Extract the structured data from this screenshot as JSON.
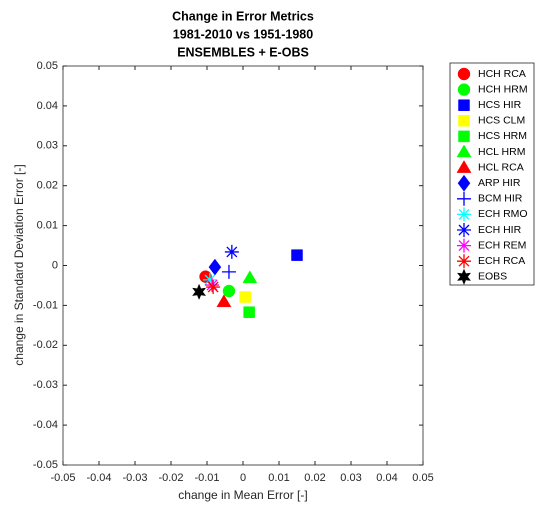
{
  "chart_data": {
    "type": "scatter",
    "title": [
      "Change in Error Metrics",
      "1981-2010 vs 1951-1980",
      "ENSEMBLES + E-OBS"
    ],
    "xlabel": "change in Mean Error [-]",
    "ylabel": "change in Standard Deviation Error [-]",
    "xlim": [
      -0.05,
      0.05
    ],
    "ylim": [
      -0.05,
      0.05
    ],
    "xticks": [
      -0.05,
      -0.04,
      -0.03,
      -0.02,
      -0.01,
      0,
      0.01,
      0.02,
      0.03,
      0.04,
      0.05
    ],
    "yticks": [
      -0.05,
      -0.04,
      -0.03,
      -0.02,
      -0.01,
      0,
      0.01,
      0.02,
      0.03,
      0.04,
      0.05
    ],
    "grid": false,
    "legend": "outside-right",
    "series": [
      {
        "name": "HCH RCA",
        "color": "#ff0000",
        "marker": "circle",
        "x": [
          -0.0104
        ],
        "values": [
          -0.0028
        ]
      },
      {
        "name": "HCH HRM",
        "color": "#00ff00",
        "marker": "circle",
        "x": [
          -0.0039
        ],
        "values": [
          -0.0064
        ]
      },
      {
        "name": "HCS HIR",
        "color": "#0000ff",
        "marker": "square",
        "x": [
          0.015
        ],
        "values": [
          0.0026
        ]
      },
      {
        "name": "HCS CLM",
        "color": "#ffff00",
        "marker": "square",
        "x": [
          0.0006
        ],
        "values": [
          -0.0079
        ]
      },
      {
        "name": "HCS HRM",
        "color": "#00ff00",
        "marker": "square",
        "x": [
          0.0017
        ],
        "values": [
          -0.0117
        ]
      },
      {
        "name": "HCL HRM",
        "color": "#00ff00",
        "marker": "triangle",
        "x": [
          0.0019
        ],
        "values": [
          -0.0031
        ]
      },
      {
        "name": "HCL RCA",
        "color": "#ff0000",
        "marker": "triangle",
        "x": [
          -0.0053
        ],
        "values": [
          -0.0091
        ]
      },
      {
        "name": "ARP HIR",
        "color": "#0000ff",
        "marker": "diamond",
        "x": [
          -0.0078
        ],
        "values": [
          -0.0004
        ]
      },
      {
        "name": "BCM HIR",
        "color": "#0000ff",
        "marker": "plus",
        "x": [
          -0.0039
        ],
        "values": [
          -0.0016
        ]
      },
      {
        "name": "ECH RMO",
        "color": "#00ffff",
        "marker": "asterisk",
        "x": [
          -0.0092
        ],
        "values": [
          -0.0036
        ]
      },
      {
        "name": "ECH HIR",
        "color": "#0000ff",
        "marker": "asterisk",
        "x": [
          -0.0031
        ],
        "values": [
          0.0034
        ]
      },
      {
        "name": "ECH REM",
        "color": "#ff00ff",
        "marker": "asterisk",
        "x": [
          -0.0086
        ],
        "values": [
          -0.0049
        ]
      },
      {
        "name": "ECH RCA",
        "color": "#ff0000",
        "marker": "asterisk",
        "x": [
          -0.0083
        ],
        "values": [
          -0.0054
        ]
      },
      {
        "name": "EOBS",
        "color": "#000000",
        "marker": "hexagram",
        "x": [
          -0.0122
        ],
        "values": [
          -0.0066
        ]
      }
    ]
  }
}
